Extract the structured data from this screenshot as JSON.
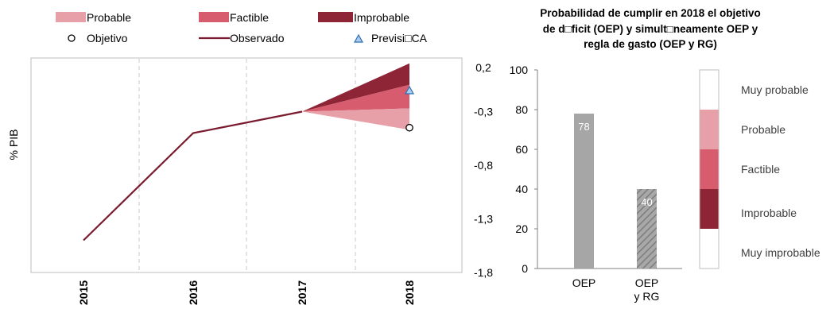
{
  "chart_data": [
    {
      "type": "area",
      "ylabel": "% PIB",
      "x_ticks": [
        "2015",
        "2016",
        "2017",
        "2018"
      ],
      "ylim": [
        -1.8,
        0.2
      ],
      "y_ticks": [
        "0,2",
        "-0,3",
        "-0,8",
        "-1,3",
        "-1,8"
      ],
      "y_tick_values": [
        0.2,
        -0.3,
        -0.8,
        -1.3,
        -1.8
      ],
      "grid": "vertical-dashed",
      "legend": {
        "placement": "top",
        "entries": [
          {
            "label": "Probable",
            "color": "#e8a0a8",
            "marker": "patch"
          },
          {
            "label": "Factible",
            "color": "#d65c6e",
            "marker": "patch"
          },
          {
            "label": "Improbable",
            "color": "#8e2536",
            "marker": "patch"
          },
          {
            "label": "Objetivo",
            "color": "#000000",
            "marker": "circle"
          },
          {
            "label": "Observado",
            "color": "#7a1a2e",
            "marker": "line"
          },
          {
            "label": "Previsi□CA",
            "color": "#4a8fd0",
            "marker": "triangle"
          }
        ]
      },
      "observed": {
        "x": [
          "2015",
          "2016",
          "2017"
        ],
        "y": [
          -1.5,
          -0.5,
          -0.3
        ]
      },
      "fan": {
        "x": [
          "2017",
          "2018"
        ],
        "improbable": {
          "lower": [
            -0.3,
            -0.05
          ],
          "upper": [
            -0.3,
            0.15
          ]
        },
        "factible": {
          "lower": [
            -0.3,
            -0.27
          ],
          "upper": [
            -0.3,
            -0.05
          ]
        },
        "probable": {
          "lower": [
            -0.3,
            -0.47
          ],
          "upper": [
            -0.3,
            -0.27
          ]
        }
      },
      "objetivo": {
        "x": "2018",
        "y": -0.45
      },
      "prevision": {
        "x": "2018",
        "y": -0.1
      }
    },
    {
      "type": "bar",
      "title_lines": [
        "Probabilidad de cumplir en 2018 el objetivo",
        "de d□ficit (OEP) y simult□neamente OEP y",
        "regla de gasto (OEP y RG)"
      ],
      "ylim": [
        0,
        100
      ],
      "y_ticks": [
        "0",
        "20",
        "40",
        "60",
        "80",
        "100"
      ],
      "y_tick_values": [
        0,
        20,
        40,
        60,
        80,
        100
      ],
      "bars": [
        {
          "label_lines": [
            "OEP"
          ],
          "value": 78,
          "value_label": "78",
          "color": "#a6a6a6",
          "pattern": "solid"
        },
        {
          "label_lines": [
            "OEP",
            "y RG"
          ],
          "value": 40,
          "value_label": "40",
          "color": "#9a9a9a",
          "pattern": "hatched"
        }
      ],
      "scale_bar": {
        "segments": [
          {
            "from": 80,
            "to": 100,
            "color": "#ffffff"
          },
          {
            "from": 60,
            "to": 80,
            "color": "#e8a0a8"
          },
          {
            "from": 40,
            "to": 60,
            "color": "#d65c6e"
          },
          {
            "from": 20,
            "to": 40,
            "color": "#8e2536"
          },
          {
            "from": 0,
            "to": 20,
            "color": "#ffffff"
          }
        ],
        "labels": [
          {
            "text": "Muy probable",
            "at": 90
          },
          {
            "text": "Probable",
            "at": 70
          },
          {
            "text": "Factible",
            "at": 50
          },
          {
            "text": "Improbable",
            "at": 28
          },
          {
            "text": "Muy improbable",
            "at": 8
          }
        ]
      }
    }
  ]
}
